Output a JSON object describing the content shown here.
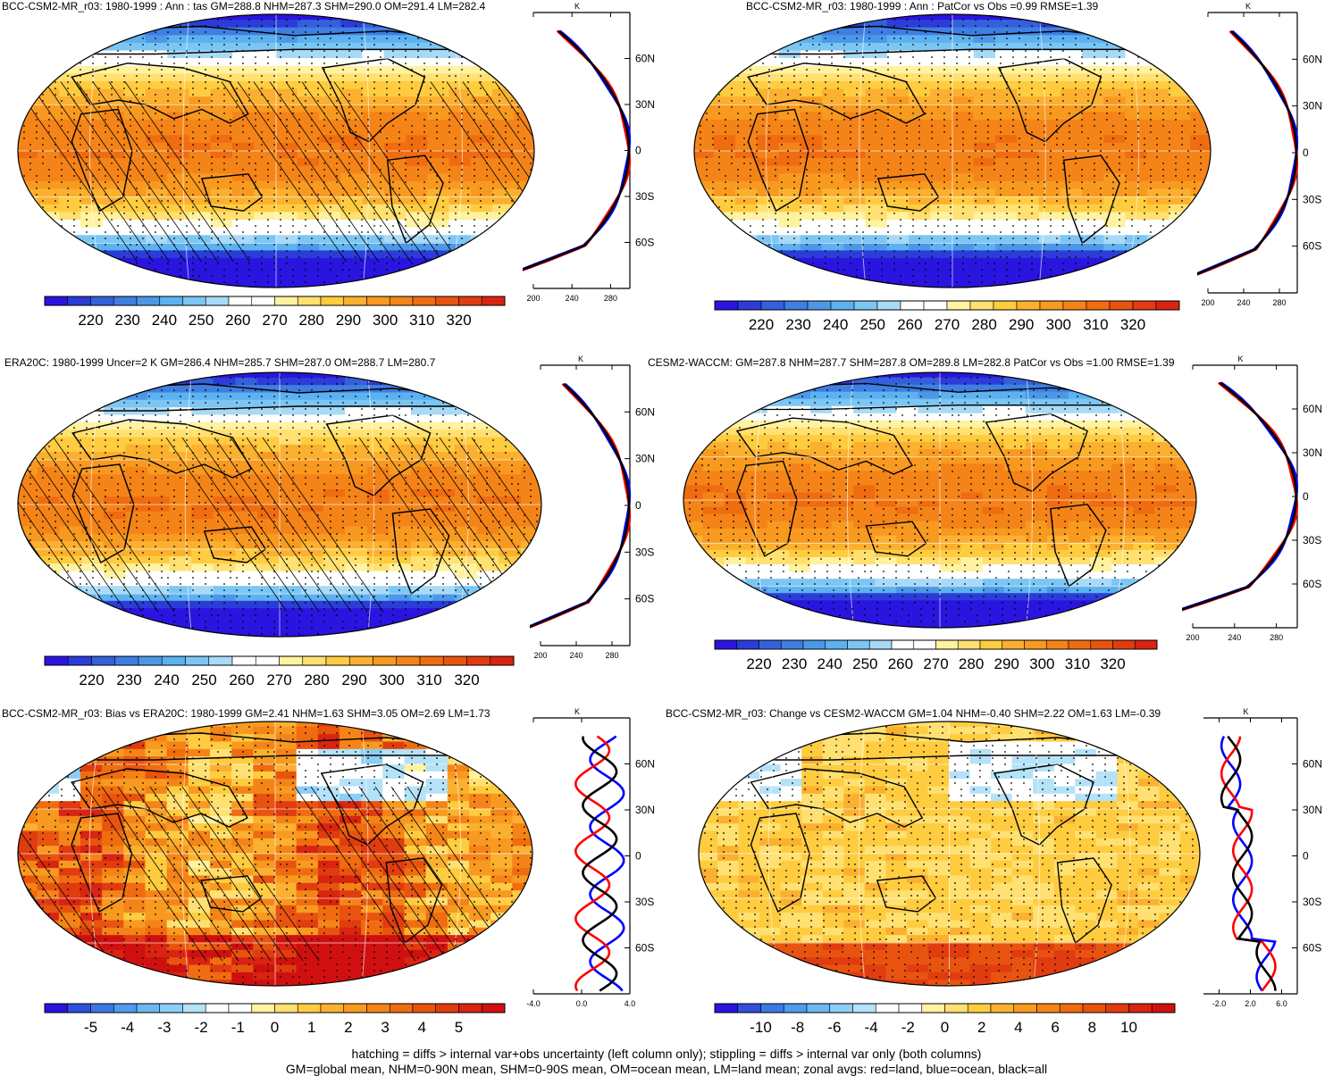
{
  "colors": {
    "abs_scale": [
      "#2a14e0",
      "#2c3cd8",
      "#3560dc",
      "#3f7ee2",
      "#4c98e8",
      "#5cb2f0",
      "#7cc6f4",
      "#a8daf6",
      "#ffffff",
      "#ffffff",
      "#fff2a0",
      "#ffe070",
      "#ffcc40",
      "#fbb030",
      "#f89a20",
      "#f58418",
      "#f06c10",
      "#e85410",
      "#e03c10",
      "#d82410"
    ],
    "land": "#ff0000",
    "ocean": "#0000ff",
    "all": "#000000"
  },
  "panels": [
    {
      "id": "p1",
      "title": "BCC-CSM2-MR_r03: 1980-1999 : Ann : tas GM=288.8 NHM=287.3 SHM=290.0 OM=291.4 LM=282.4",
      "kind": "abs",
      "hatch": true,
      "stipple": true,
      "colorbar_labels": [
        "220",
        "230",
        "240",
        "250",
        "260",
        "270",
        "280",
        "290",
        "300",
        "310",
        "320"
      ],
      "zonal": {
        "unit": "K",
        "lat_labels": [
          "60N",
          "30N",
          "0",
          "30S",
          "60S"
        ],
        "x_labels": [
          "200",
          "240",
          "280"
        ],
        "xlim": [
          200,
          300
        ]
      }
    },
    {
      "id": "p2",
      "title": "BCC-CSM2-MR_r03: 1980-1999 : Ann : PatCor vs Obs =0.99 RMSE=1.39",
      "kind": "abs",
      "hatch": false,
      "stipple": true,
      "colorbar_labels": [
        "220",
        "230",
        "240",
        "250",
        "260",
        "270",
        "280",
        "290",
        "300",
        "310",
        "320"
      ],
      "zonal": {
        "unit": "K",
        "lat_labels": [
          "60N",
          "30N",
          "0",
          "30S",
          "60S"
        ],
        "x_labels": [
          "200",
          "240",
          "280"
        ],
        "xlim": [
          200,
          300
        ]
      }
    },
    {
      "id": "p3",
      "title": "ERA20C: 1980-1999 Uncer=2 K GM=286.4 NHM=285.7 SHM=287.0 OM=288.7 LM=280.7",
      "kind": "abs",
      "hatch": true,
      "stipple": true,
      "colorbar_labels": [
        "220",
        "230",
        "240",
        "250",
        "260",
        "270",
        "280",
        "290",
        "300",
        "310",
        "320"
      ],
      "zonal": {
        "unit": "K",
        "lat_labels": [
          "60N",
          "30N",
          "0",
          "30S",
          "60S"
        ],
        "x_labels": [
          "200",
          "240",
          "280"
        ],
        "xlim": [
          200,
          300
        ]
      }
    },
    {
      "id": "p4",
      "title": "CESM2-WACCM: GM=287.8 NHM=287.7 SHM=287.8 OM=289.8 LM=282.8 PatCor vs Obs =1.00 RMSE=1.39",
      "kind": "abs",
      "hatch": false,
      "stipple": true,
      "colorbar_labels": [
        "220",
        "230",
        "240",
        "250",
        "260",
        "270",
        "280",
        "290",
        "300",
        "310",
        "320"
      ],
      "zonal": {
        "unit": "K",
        "lat_labels": [
          "60N",
          "30N",
          "0",
          "30S",
          "60S"
        ],
        "x_labels": [
          "200",
          "240",
          "280"
        ],
        "xlim": [
          200,
          300
        ]
      }
    },
    {
      "id": "p5",
      "title": "BCC-CSM2-MR_r03: Bias vs ERA20C: 1980-1999 GM=2.41 NHM=1.63 SHM=3.05 OM=2.69 LM=1.73",
      "kind": "bias",
      "hatch": true,
      "stipple": true,
      "colorbar_labels": [
        "-5",
        "-4",
        "-3",
        "-2",
        "-1",
        "0",
        "1",
        "2",
        "3",
        "4",
        "5"
      ],
      "zonal": {
        "unit": "K",
        "lat_labels": [
          "60N",
          "30N",
          "0",
          "30S",
          "60S"
        ],
        "x_labels": [
          "-4.0",
          "0.0",
          "4.0"
        ],
        "xlim": [
          -4,
          4
        ]
      }
    },
    {
      "id": "p6",
      "title": "BCC-CSM2-MR_r03: Change vs CESM2-WACCM GM=1.04 NHM=-0.40 SHM=2.22 OM=1.63 LM=-0.39",
      "kind": "change",
      "hatch": false,
      "stipple": true,
      "colorbar_labels": [
        "-10",
        "-8",
        "-6",
        "-4",
        "-2",
        "0",
        "2",
        "4",
        "6",
        "8",
        "10"
      ],
      "zonal": {
        "unit": "K",
        "lat_labels": [
          "60N",
          "30N",
          "0",
          "30S",
          "60S"
        ],
        "x_labels": [
          "-2.0",
          "2.0",
          "6.0"
        ],
        "xlim": [
          -4,
          8
        ]
      }
    }
  ],
  "footer": {
    "line1": "hatching = diffs > internal var+obs uncertainty (left column only); stippling = diffs > internal var only (both columns)",
    "line2": "GM=global mean, NHM=0-90N mean, SHM=0-90S mean, OM=ocean mean, LM=land mean; zonal avgs: red=land, blue=ocean, black=all"
  }
}
